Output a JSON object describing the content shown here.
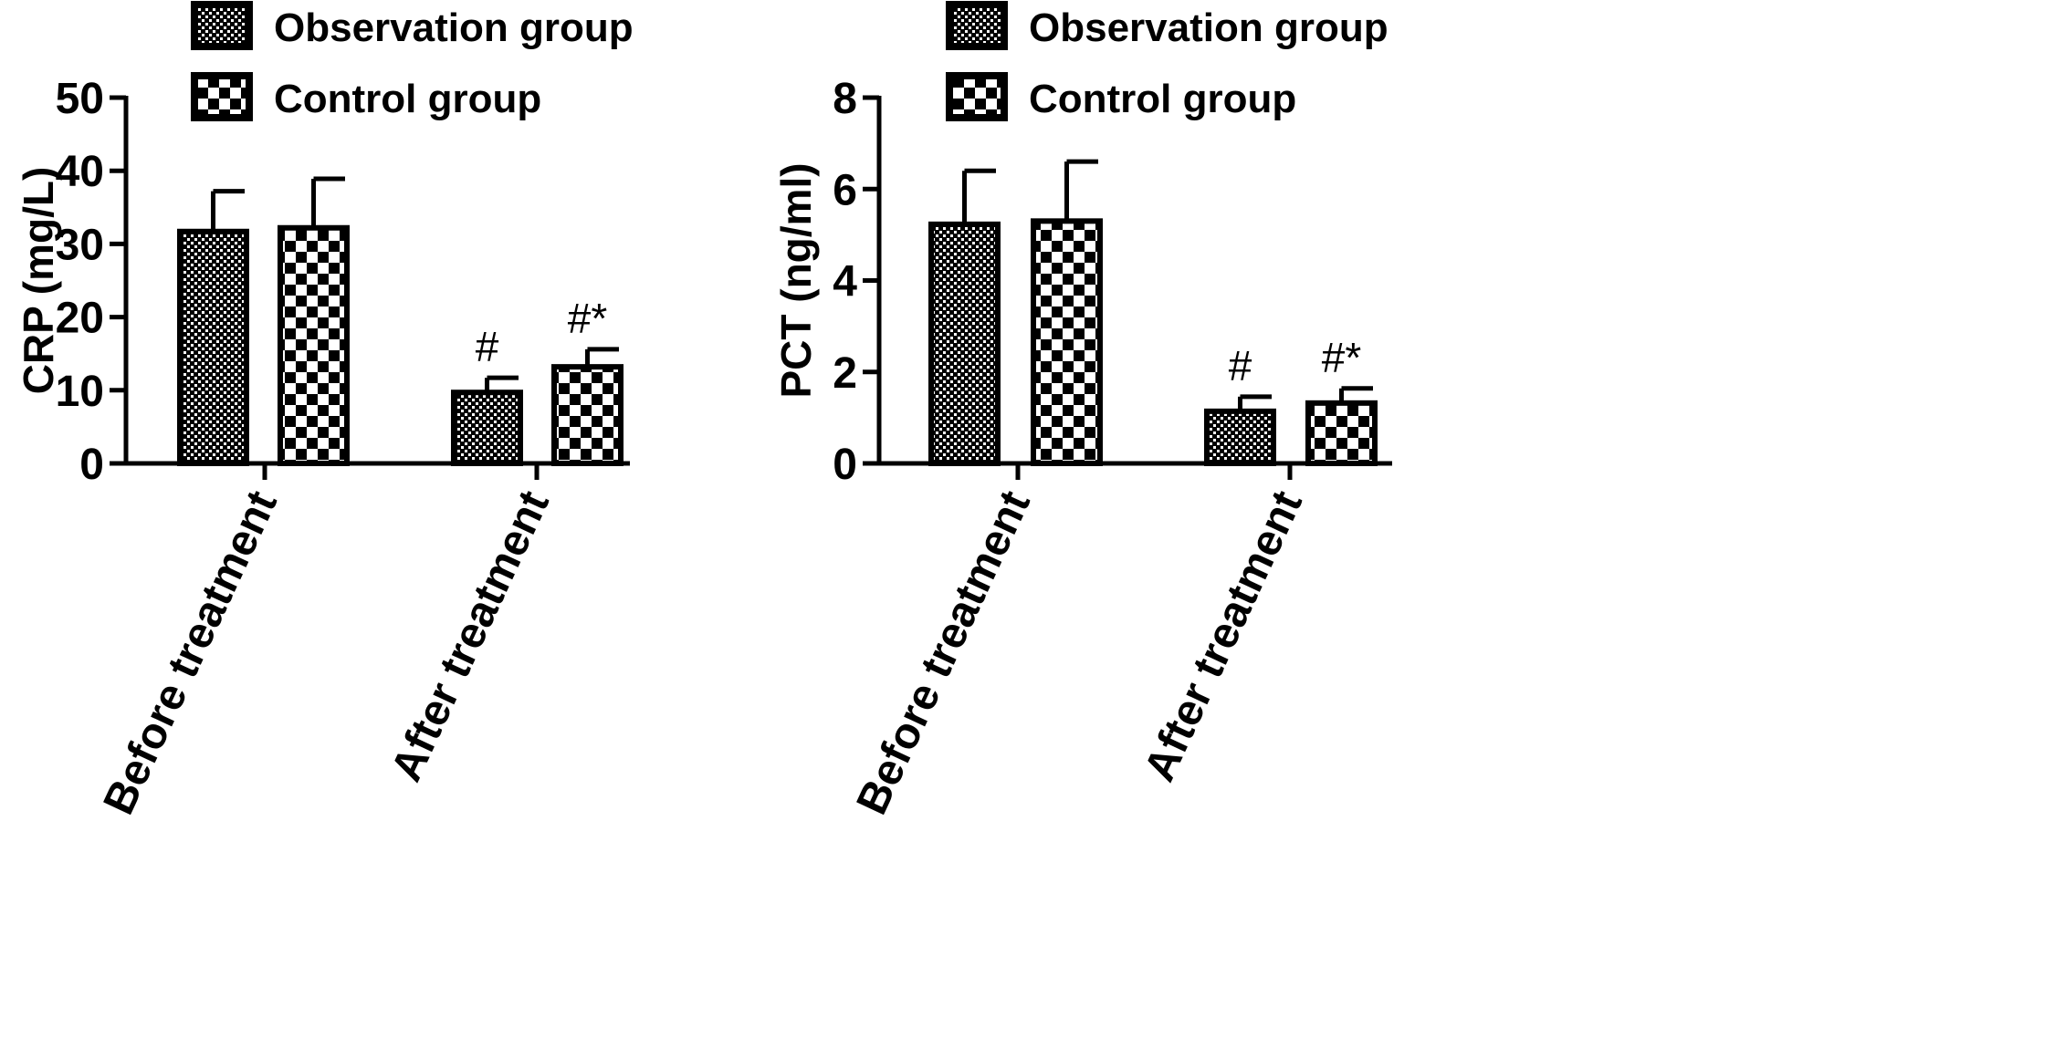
{
  "chart_data": [
    {
      "type": "bar",
      "categories": [
        "Before treatment",
        "After treatment"
      ],
      "ylabel": "CRP (mg/L)",
      "ylim": [
        0,
        50
      ],
      "yticks": [
        0,
        10,
        20,
        30,
        40,
        50
      ],
      "legend": "top-left",
      "grid": false,
      "series": [
        {
          "name": "Observation group",
          "values": [
            31.7,
            9.7
          ],
          "error": [
            5.5,
            2.0
          ],
          "annotations": [
            "",
            "#"
          ]
        },
        {
          "name": "Control group",
          "values": [
            32.2,
            13.2
          ],
          "error": [
            6.7,
            2.4
          ],
          "annotations": [
            "",
            "#*"
          ]
        }
      ]
    },
    {
      "type": "bar",
      "categories": [
        "Before treatment",
        "After treatment"
      ],
      "ylabel": "PCT (ng/ml)",
      "ylim": [
        0,
        8
      ],
      "yticks": [
        0,
        2,
        4,
        6,
        8
      ],
      "legend": "top-left",
      "grid": false,
      "series": [
        {
          "name": "Observation group",
          "values": [
            5.23,
            1.14
          ],
          "error": [
            1.17,
            0.32
          ],
          "annotations": [
            "",
            "#"
          ]
        },
        {
          "name": "Control group",
          "values": [
            5.3,
            1.32
          ],
          "error": [
            1.3,
            0.32
          ],
          "annotations": [
            "",
            "#*"
          ]
        }
      ]
    }
  ]
}
